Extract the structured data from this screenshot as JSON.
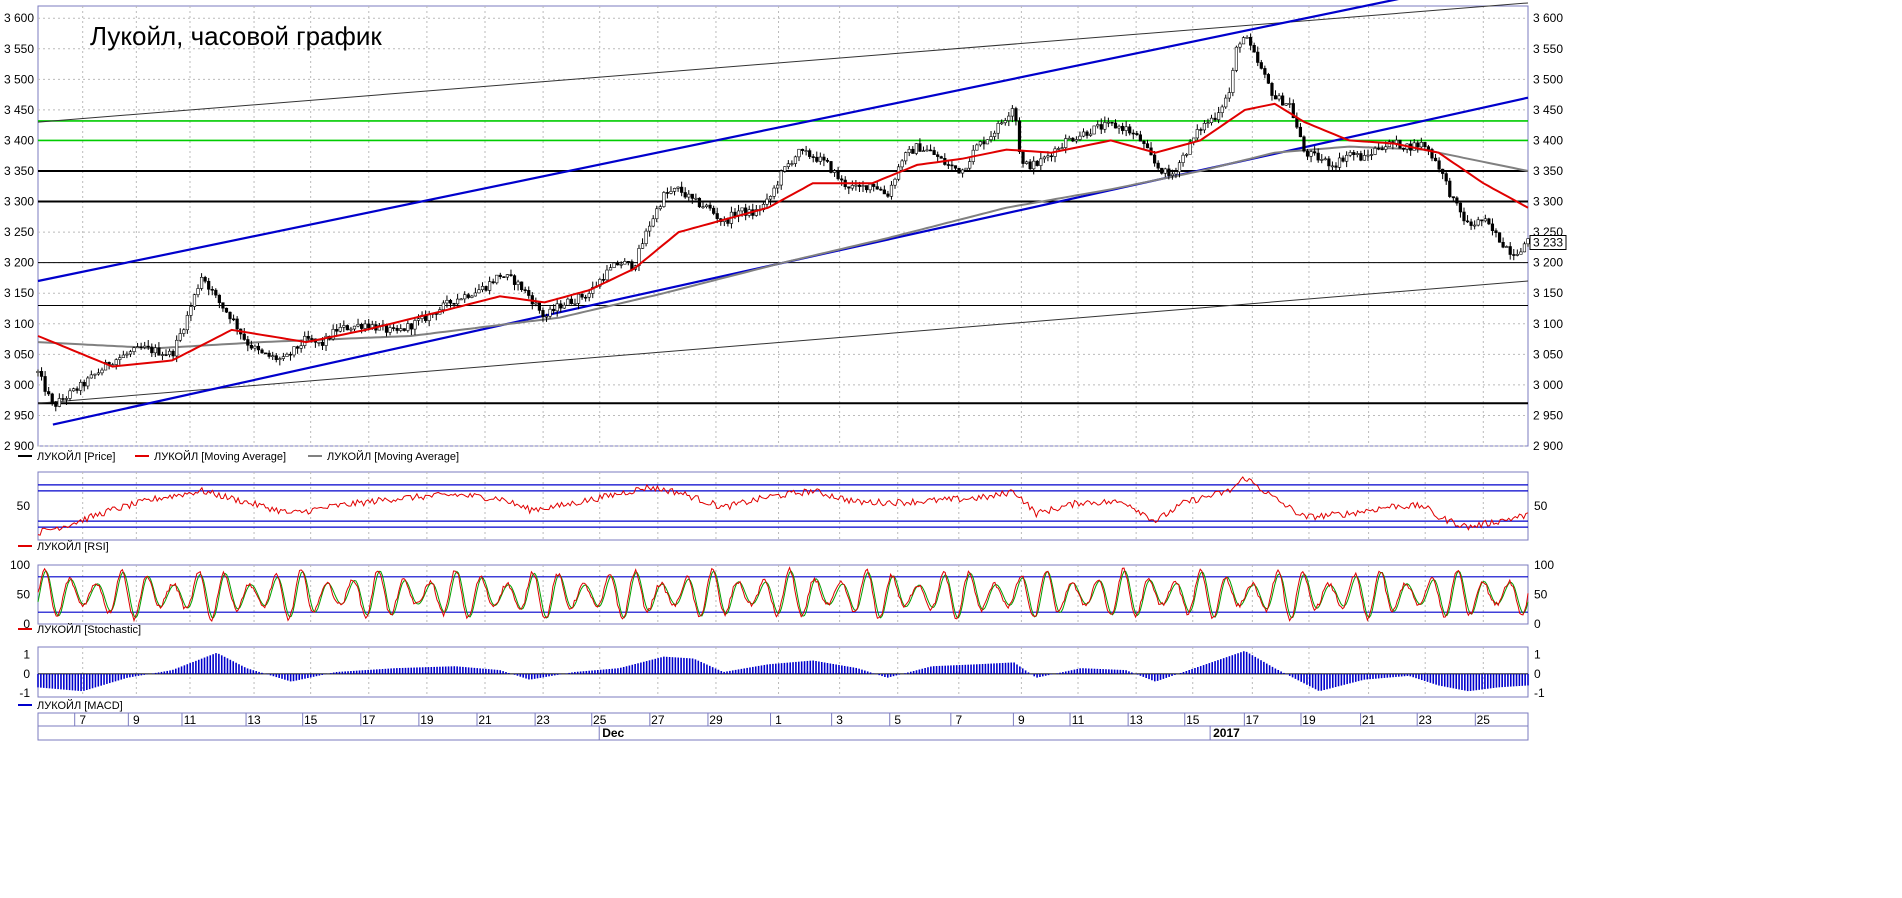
{
  "colors": {
    "price": "#000000",
    "ma_fast": "#e00000",
    "ma_slow": "#808080",
    "channel": "#0000cc",
    "support_green": "#00cc00",
    "level_black": "#000000",
    "rsi": "#e00000",
    "stoch_k": "#e00000",
    "stoch_d": "#00a000",
    "macd": "#0000cc",
    "grid": "#bbbbbb"
  },
  "chart_data": [
    {
      "type": "candlestick",
      "title": "Лукойл, часовой график",
      "ylim": [
        2900,
        3620
      ],
      "yticks": [
        "2 900",
        "2 950",
        "3 000",
        "3 050",
        "3 100",
        "3 150",
        "3 200",
        "3 250",
        "3 300",
        "3 350",
        "3 400",
        "3 450",
        "3 500",
        "3 550",
        "3 600"
      ],
      "last_price_label": "3 233",
      "last_price": 3233,
      "close_path": [
        {
          "t": 0.0,
          "v": 3020
        },
        {
          "t": 0.01,
          "v": 2965
        },
        {
          "t": 0.03,
          "v": 3000
        },
        {
          "t": 0.05,
          "v": 3040
        },
        {
          "t": 0.07,
          "v": 3060
        },
        {
          "t": 0.09,
          "v": 3050
        },
        {
          "t": 0.1,
          "v": 3110
        },
        {
          "t": 0.11,
          "v": 3180
        },
        {
          "t": 0.12,
          "v": 3140
        },
        {
          "t": 0.13,
          "v": 3110
        },
        {
          "t": 0.14,
          "v": 3070
        },
        {
          "t": 0.15,
          "v": 3050
        },
        {
          "t": 0.165,
          "v": 3040
        },
        {
          "t": 0.18,
          "v": 3075
        },
        {
          "t": 0.19,
          "v": 3065
        },
        {
          "t": 0.2,
          "v": 3090
        },
        {
          "t": 0.22,
          "v": 3100
        },
        {
          "t": 0.24,
          "v": 3085
        },
        {
          "t": 0.26,
          "v": 3110
        },
        {
          "t": 0.28,
          "v": 3140
        },
        {
          "t": 0.3,
          "v": 3160
        },
        {
          "t": 0.31,
          "v": 3180
        },
        {
          "t": 0.32,
          "v": 3170
        },
        {
          "t": 0.33,
          "v": 3145
        },
        {
          "t": 0.34,
          "v": 3110
        },
        {
          "t": 0.35,
          "v": 3130
        },
        {
          "t": 0.36,
          "v": 3140
        },
        {
          "t": 0.37,
          "v": 3150
        },
        {
          "t": 0.38,
          "v": 3180
        },
        {
          "t": 0.39,
          "v": 3200
        },
        {
          "t": 0.4,
          "v": 3195
        },
        {
          "t": 0.41,
          "v": 3260
        },
        {
          "t": 0.42,
          "v": 3310
        },
        {
          "t": 0.43,
          "v": 3320
        },
        {
          "t": 0.44,
          "v": 3300
        },
        {
          "t": 0.45,
          "v": 3290
        },
        {
          "t": 0.46,
          "v": 3265
        },
        {
          "t": 0.47,
          "v": 3285
        },
        {
          "t": 0.48,
          "v": 3280
        },
        {
          "t": 0.49,
          "v": 3300
        },
        {
          "t": 0.5,
          "v": 3350
        },
        {
          "t": 0.51,
          "v": 3380
        },
        {
          "t": 0.52,
          "v": 3375
        },
        {
          "t": 0.53,
          "v": 3360
        },
        {
          "t": 0.54,
          "v": 3330
        },
        {
          "t": 0.55,
          "v": 3320
        },
        {
          "t": 0.56,
          "v": 3330
        },
        {
          "t": 0.57,
          "v": 3310
        },
        {
          "t": 0.58,
          "v": 3370
        },
        {
          "t": 0.59,
          "v": 3390
        },
        {
          "t": 0.6,
          "v": 3380
        },
        {
          "t": 0.61,
          "v": 3360
        },
        {
          "t": 0.62,
          "v": 3350
        },
        {
          "t": 0.63,
          "v": 3390
        },
        {
          "t": 0.64,
          "v": 3410
        },
        {
          "t": 0.65,
          "v": 3440
        },
        {
          "t": 0.655,
          "v": 3460
        },
        {
          "t": 0.66,
          "v": 3360
        },
        {
          "t": 0.67,
          "v": 3360
        },
        {
          "t": 0.68,
          "v": 3380
        },
        {
          "t": 0.69,
          "v": 3400
        },
        {
          "t": 0.7,
          "v": 3410
        },
        {
          "t": 0.71,
          "v": 3420
        },
        {
          "t": 0.72,
          "v": 3425
        },
        {
          "t": 0.73,
          "v": 3420
        },
        {
          "t": 0.74,
          "v": 3400
        },
        {
          "t": 0.75,
          "v": 3360
        },
        {
          "t": 0.76,
          "v": 3340
        },
        {
          "t": 0.77,
          "v": 3380
        },
        {
          "t": 0.78,
          "v": 3420
        },
        {
          "t": 0.79,
          "v": 3440
        },
        {
          "t": 0.8,
          "v": 3480
        },
        {
          "t": 0.805,
          "v": 3560
        },
        {
          "t": 0.81,
          "v": 3570
        },
        {
          "t": 0.82,
          "v": 3520
        },
        {
          "t": 0.83,
          "v": 3470
        },
        {
          "t": 0.84,
          "v": 3460
        },
        {
          "t": 0.85,
          "v": 3380
        },
        {
          "t": 0.86,
          "v": 3370
        },
        {
          "t": 0.87,
          "v": 3360
        },
        {
          "t": 0.88,
          "v": 3380
        },
        {
          "t": 0.89,
          "v": 3370
        },
        {
          "t": 0.9,
          "v": 3390
        },
        {
          "t": 0.91,
          "v": 3395
        },
        {
          "t": 0.92,
          "v": 3390
        },
        {
          "t": 0.93,
          "v": 3395
        },
        {
          "t": 0.94,
          "v": 3360
        },
        {
          "t": 0.95,
          "v": 3300
        },
        {
          "t": 0.96,
          "v": 3260
        },
        {
          "t": 0.97,
          "v": 3270
        },
        {
          "t": 0.98,
          "v": 3240
        },
        {
          "t": 0.99,
          "v": 3215
        },
        {
          "t": 1.0,
          "v": 3233
        }
      ],
      "ma_fast_path": [
        {
          "t": 0.0,
          "v": 3080
        },
        {
          "t": 0.05,
          "v": 3030
        },
        {
          "t": 0.09,
          "v": 3040
        },
        {
          "t": 0.13,
          "v": 3090
        },
        {
          "t": 0.18,
          "v": 3070
        },
        {
          "t": 0.22,
          "v": 3090
        },
        {
          "t": 0.27,
          "v": 3120
        },
        {
          "t": 0.31,
          "v": 3145
        },
        {
          "t": 0.34,
          "v": 3135
        },
        {
          "t": 0.37,
          "v": 3155
        },
        {
          "t": 0.4,
          "v": 3190
        },
        {
          "t": 0.43,
          "v": 3250
        },
        {
          "t": 0.46,
          "v": 3270
        },
        {
          "t": 0.49,
          "v": 3290
        },
        {
          "t": 0.52,
          "v": 3330
        },
        {
          "t": 0.56,
          "v": 3330
        },
        {
          "t": 0.59,
          "v": 3360
        },
        {
          "t": 0.62,
          "v": 3370
        },
        {
          "t": 0.65,
          "v": 3385
        },
        {
          "t": 0.68,
          "v": 3380
        },
        {
          "t": 0.72,
          "v": 3400
        },
        {
          "t": 0.75,
          "v": 3380
        },
        {
          "t": 0.78,
          "v": 3400
        },
        {
          "t": 0.81,
          "v": 3450
        },
        {
          "t": 0.83,
          "v": 3460
        },
        {
          "t": 0.85,
          "v": 3430
        },
        {
          "t": 0.88,
          "v": 3400
        },
        {
          "t": 0.91,
          "v": 3395
        },
        {
          "t": 0.94,
          "v": 3380
        },
        {
          "t": 0.97,
          "v": 3330
        },
        {
          "t": 1.0,
          "v": 3290
        }
      ],
      "ma_slow_path": [
        {
          "t": 0.0,
          "v": 3070
        },
        {
          "t": 0.08,
          "v": 3060
        },
        {
          "t": 0.15,
          "v": 3070
        },
        {
          "t": 0.25,
          "v": 3080
        },
        {
          "t": 0.35,
          "v": 3110
        },
        {
          "t": 0.42,
          "v": 3150
        },
        {
          "t": 0.5,
          "v": 3200
        },
        {
          "t": 0.57,
          "v": 3240
        },
        {
          "t": 0.65,
          "v": 3290
        },
        {
          "t": 0.72,
          "v": 3320
        },
        {
          "t": 0.78,
          "v": 3350
        },
        {
          "t": 0.83,
          "v": 3380
        },
        {
          "t": 0.88,
          "v": 3390
        },
        {
          "t": 0.93,
          "v": 3385
        },
        {
          "t": 1.0,
          "v": 3350
        }
      ],
      "horizontal_levels": [
        {
          "v": 2970,
          "style": "black-thick"
        },
        {
          "v": 3130,
          "style": "black-thin"
        },
        {
          "v": 3200,
          "style": "black-thin"
        },
        {
          "v": 3300,
          "style": "black-thick"
        },
        {
          "v": 3350,
          "style": "black-thick"
        },
        {
          "v": 3400,
          "style": "green"
        },
        {
          "v": 3432,
          "style": "green"
        }
      ],
      "trend_lines": [
        {
          "t1": 0.0,
          "v1": 3430,
          "t2": 1.0,
          "v2": 3625,
          "style": "black-thin"
        },
        {
          "t1": 0.0,
          "v1": 2970,
          "t2": 1.0,
          "v2": 3170,
          "style": "black-thin"
        },
        {
          "t1": 0.0,
          "v1": 3170,
          "t2": 0.93,
          "v2": 3640,
          "style": "blue"
        },
        {
          "t1": 0.01,
          "v1": 2935,
          "t2": 1.0,
          "v2": 3470,
          "style": "blue"
        }
      ],
      "legend": [
        "ЛУКОЙЛ [Price]",
        "ЛУКОЙЛ [Moving Average]",
        "ЛУКОЙЛ [Moving Average]"
      ]
    },
    {
      "type": "line",
      "name": "rsi",
      "ylim": [
        5,
        95
      ],
      "ytick_label": "50",
      "ytick_value": 50,
      "levels": [
        22,
        30,
        70,
        78
      ],
      "path": [
        {
          "t": 0.0,
          "v": 15
        },
        {
          "t": 0.02,
          "v": 25
        },
        {
          "t": 0.05,
          "v": 45
        },
        {
          "t": 0.08,
          "v": 60
        },
        {
          "t": 0.11,
          "v": 70
        },
        {
          "t": 0.14,
          "v": 55
        },
        {
          "t": 0.17,
          "v": 40
        },
        {
          "t": 0.2,
          "v": 50
        },
        {
          "t": 0.24,
          "v": 60
        },
        {
          "t": 0.28,
          "v": 65
        },
        {
          "t": 0.31,
          "v": 60
        },
        {
          "t": 0.33,
          "v": 45
        },
        {
          "t": 0.35,
          "v": 50
        },
        {
          "t": 0.38,
          "v": 62
        },
        {
          "t": 0.41,
          "v": 75
        },
        {
          "t": 0.43,
          "v": 68
        },
        {
          "t": 0.46,
          "v": 48
        },
        {
          "t": 0.49,
          "v": 62
        },
        {
          "t": 0.52,
          "v": 70
        },
        {
          "t": 0.55,
          "v": 55
        },
        {
          "t": 0.58,
          "v": 55
        },
        {
          "t": 0.61,
          "v": 58
        },
        {
          "t": 0.64,
          "v": 62
        },
        {
          "t": 0.655,
          "v": 70
        },
        {
          "t": 0.67,
          "v": 40
        },
        {
          "t": 0.7,
          "v": 55
        },
        {
          "t": 0.73,
          "v": 55
        },
        {
          "t": 0.75,
          "v": 30
        },
        {
          "t": 0.77,
          "v": 55
        },
        {
          "t": 0.8,
          "v": 70
        },
        {
          "t": 0.81,
          "v": 88
        },
        {
          "t": 0.83,
          "v": 60
        },
        {
          "t": 0.85,
          "v": 35
        },
        {
          "t": 0.88,
          "v": 40
        },
        {
          "t": 0.91,
          "v": 50
        },
        {
          "t": 0.93,
          "v": 50
        },
        {
          "t": 0.94,
          "v": 35
        },
        {
          "t": 0.96,
          "v": 22
        },
        {
          "t": 0.98,
          "v": 30
        },
        {
          "t": 1.0,
          "v": 38
        }
      ],
      "legend": "ЛУКОЙЛ [RSI]"
    },
    {
      "type": "line",
      "name": "stochastic",
      "ylim": [
        0,
        100
      ],
      "ytick_labels": [
        "0",
        "50",
        "100"
      ],
      "ytick_values": [
        0,
        50,
        100
      ],
      "levels": [
        20,
        80
      ],
      "cycles": 58,
      "legend": "ЛУКОЙЛ [Stochastic]"
    },
    {
      "type": "bar",
      "name": "macd",
      "ylim": [
        -1.2,
        1.4
      ],
      "ytick_labels": [
        "-1",
        "0",
        "1"
      ],
      "ytick_values": [
        -1,
        0,
        1
      ],
      "envelope": [
        {
          "t": 0.0,
          "v": -0.7
        },
        {
          "t": 0.03,
          "v": -0.9
        },
        {
          "t": 0.06,
          "v": -0.2
        },
        {
          "t": 0.09,
          "v": 0.2
        },
        {
          "t": 0.11,
          "v": 0.8
        },
        {
          "t": 0.12,
          "v": 1.1
        },
        {
          "t": 0.14,
          "v": 0.3
        },
        {
          "t": 0.17,
          "v": -0.4
        },
        {
          "t": 0.2,
          "v": 0.1
        },
        {
          "t": 0.24,
          "v": 0.3
        },
        {
          "t": 0.28,
          "v": 0.4
        },
        {
          "t": 0.31,
          "v": 0.2
        },
        {
          "t": 0.33,
          "v": -0.3
        },
        {
          "t": 0.36,
          "v": 0.1
        },
        {
          "t": 0.39,
          "v": 0.3
        },
        {
          "t": 0.42,
          "v": 0.9
        },
        {
          "t": 0.44,
          "v": 0.8
        },
        {
          "t": 0.46,
          "v": 0.1
        },
        {
          "t": 0.49,
          "v": 0.5
        },
        {
          "t": 0.52,
          "v": 0.7
        },
        {
          "t": 0.55,
          "v": 0.3
        },
        {
          "t": 0.57,
          "v": -0.2
        },
        {
          "t": 0.6,
          "v": 0.4
        },
        {
          "t": 0.63,
          "v": 0.5
        },
        {
          "t": 0.655,
          "v": 0.6
        },
        {
          "t": 0.67,
          "v": -0.2
        },
        {
          "t": 0.7,
          "v": 0.3
        },
        {
          "t": 0.73,
          "v": 0.2
        },
        {
          "t": 0.75,
          "v": -0.4
        },
        {
          "t": 0.78,
          "v": 0.4
        },
        {
          "t": 0.81,
          "v": 1.2
        },
        {
          "t": 0.83,
          "v": 0.3
        },
        {
          "t": 0.86,
          "v": -0.9
        },
        {
          "t": 0.89,
          "v": -0.3
        },
        {
          "t": 0.92,
          "v": -0.1
        },
        {
          "t": 0.94,
          "v": -0.6
        },
        {
          "t": 0.96,
          "v": -0.9
        },
        {
          "t": 0.98,
          "v": -0.7
        },
        {
          "t": 1.0,
          "v": -0.6
        }
      ],
      "legend": "ЛУКОЙЛ [MACD]"
    }
  ],
  "x_axis": {
    "day_labels": [
      "7",
      "9",
      "11",
      "13",
      "15",
      "17",
      "19",
      "21",
      "23",
      "25",
      "27",
      "29",
      "1",
      "3",
      "5",
      "7",
      "9",
      "11",
      "13",
      "15",
      "17",
      "19",
      "21",
      "23",
      "25",
      "27",
      "29",
      "3",
      "5",
      "7",
      "9",
      "11",
      "13",
      "15",
      "17"
    ],
    "day_positions": [
      0.03,
      0.066,
      0.102,
      0.145,
      0.183,
      0.222,
      0.261,
      0.3,
      0.339,
      0.377,
      0.416,
      0.455,
      0.497,
      0.538,
      0.577,
      0.618,
      0.66,
      0.698,
      0.737,
      0.775,
      0.815,
      0.853,
      0.893,
      0.931,
      0.97,
      1.01,
      1.05,
      1.09,
      1.13,
      1.17,
      1.21,
      1.25,
      1.29,
      1.33,
      1.37
    ],
    "month_labels": [
      "Dec",
      "2017"
    ],
    "month_positions": [
      0.378,
      0.788
    ]
  }
}
